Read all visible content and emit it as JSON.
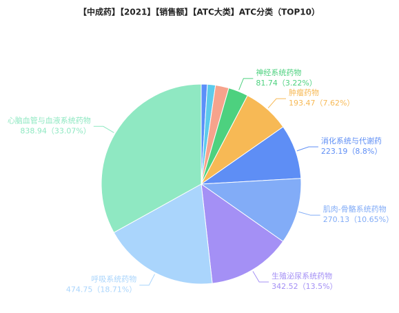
{
  "chart_data": {
    "type": "pie",
    "title": "【中成药】【2021】【销售额】【ATC大类】ATC分类（TOP10）",
    "categories": [
      null,
      null,
      null,
      "神经系统药物",
      "肿瘤药物",
      "消化系统与代谢药",
      "肌肉-骨骼系统药物",
      "生殖泌尿系统药物",
      "呼吸系统药物",
      "心脑血管与血液系统药物"
    ],
    "values": [
      25,
      33,
      55,
      81.74,
      193.47,
      223.19,
      270.13,
      342.52,
      474.75,
      838.94
    ],
    "value_labels": [
      null,
      null,
      null,
      "81.74（3.22%）",
      "193.47（7.62%）",
      "223.19（8.8%）",
      "270.13（10.65%）",
      "342.52（13.5%）",
      "474.75（18.71%）",
      "838.94（33.07%）"
    ],
    "colors": [
      "#5b8ff9",
      "#5ccbeb",
      "#f6a38c",
      "#4dd17f",
      "#f7b955",
      "#5e8ef5",
      "#82acf7",
      "#a490f5",
      "#aad5fc",
      "#8fe8c2"
    ]
  }
}
